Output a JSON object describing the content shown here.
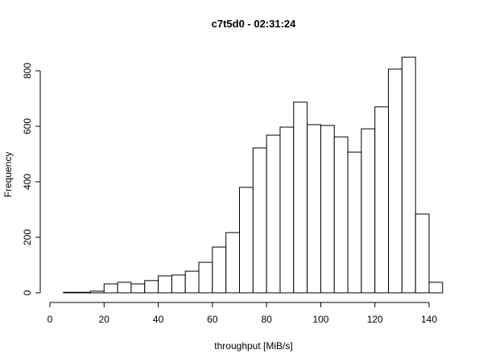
{
  "chart_data": {
    "type": "histogram",
    "title": "c7t5d0 - 02:31:24",
    "x_label": "throughput [MiB/s]",
    "y_label": "Frequency",
    "bins": [
      5,
      10,
      15,
      20,
      25,
      30,
      35,
      40,
      45,
      50,
      55,
      60,
      65,
      70,
      75,
      80,
      85,
      90,
      95,
      100,
      105,
      110,
      115,
      120,
      125,
      130,
      135,
      140,
      145
    ],
    "values": [
      2,
      2,
      6,
      32,
      38,
      32,
      44,
      61,
      64,
      78,
      110,
      165,
      217,
      380,
      522,
      568,
      597,
      687,
      606,
      603,
      562,
      507,
      591,
      670,
      806,
      849,
      284,
      38
    ],
    "color": "#ffffff",
    "xlim": [
      0,
      140
    ],
    "xticks": [
      0,
      20,
      40,
      60,
      80,
      100,
      120,
      140
    ],
    "ylim": [
      0,
      800
    ],
    "yticks": [
      0,
      200,
      400,
      600,
      800
    ]
  }
}
